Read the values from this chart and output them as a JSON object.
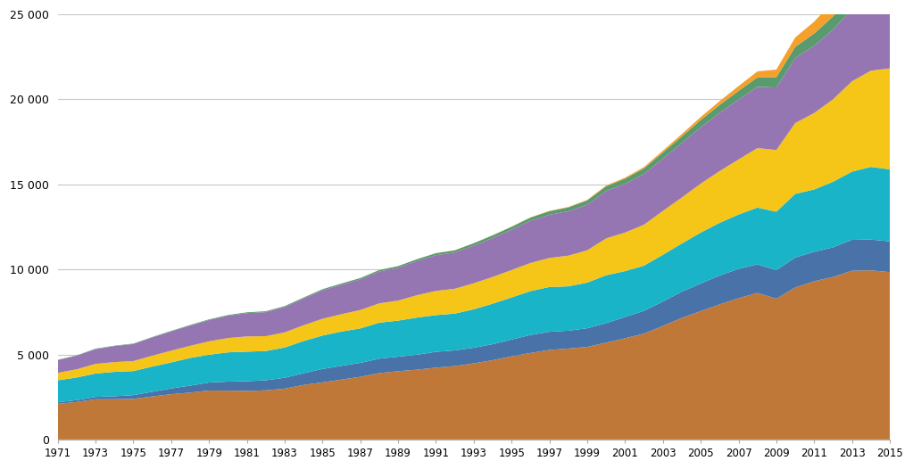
{
  "years": [
    1971,
    1972,
    1973,
    1974,
    1975,
    1976,
    1977,
    1978,
    1979,
    1980,
    1981,
    1982,
    1983,
    1984,
    1985,
    1986,
    1987,
    1988,
    1989,
    1990,
    1991,
    1992,
    1993,
    1994,
    1995,
    1996,
    1997,
    1998,
    1999,
    2000,
    2001,
    2002,
    2003,
    2004,
    2005,
    2006,
    2007,
    2008,
    2009,
    2010,
    2011,
    2012,
    2013,
    2014,
    2015
  ],
  "layers": {
    "coal": [
      2097,
      2204,
      2362,
      2366,
      2385,
      2530,
      2660,
      2756,
      2876,
      2870,
      2855,
      2888,
      2989,
      3206,
      3355,
      3519,
      3684,
      3901,
      4016,
      4102,
      4225,
      4317,
      4474,
      4662,
      4886,
      5086,
      5263,
      5345,
      5442,
      5694,
      5952,
      6224,
      6679,
      7148,
      7549,
      7942,
      8308,
      8617,
      8277,
      8938,
      9304,
      9559,
      9921,
      9946,
      9840
    ],
    "nuclear": [
      86,
      110,
      140,
      175,
      220,
      273,
      340,
      409,
      472,
      530,
      570,
      590,
      640,
      690,
      790,
      810,
      820,
      850,
      850,
      880,
      930,
      920,
      920,
      940,
      990,
      1060,
      1070,
      1050,
      1100,
      1150,
      1250,
      1340,
      1430,
      1540,
      1620,
      1700,
      1720,
      1680,
      1680,
      1760,
      1730,
      1740,
      1820,
      1810,
      1810
    ],
    "hydro": [
      1295,
      1329,
      1376,
      1434,
      1416,
      1482,
      1530,
      1627,
      1633,
      1722,
      1738,
      1723,
      1778,
      1893,
      1966,
      2017,
      2027,
      2117,
      2122,
      2187,
      2157,
      2165,
      2262,
      2384,
      2476,
      2580,
      2634,
      2609,
      2683,
      2813,
      2697,
      2657,
      2752,
      2836,
      2998,
      3097,
      3200,
      3339,
      3436,
      3746,
      3667,
      3859,
      4009,
      4274,
      4237
    ],
    "gas": [
      438,
      483,
      567,
      574,
      590,
      642,
      693,
      714,
      791,
      843,
      895,
      876,
      889,
      927,
      987,
      1020,
      1082,
      1135,
      1179,
      1316,
      1424,
      1462,
      1532,
      1572,
      1613,
      1653,
      1708,
      1804,
      1901,
      2168,
      2268,
      2410,
      2577,
      2704,
      2879,
      3044,
      3238,
      3501,
      3629,
      4167,
      4498,
      4847,
      5314,
      5657,
      5940
    ],
    "nuclear_purple": [
      750,
      800,
      870,
      940,
      1000,
      1070,
      1130,
      1190,
      1250,
      1310,
      1370,
      1410,
      1490,
      1570,
      1670,
      1730,
      1800,
      1870,
      1930,
      2010,
      2100,
      2130,
      2210,
      2290,
      2370,
      2480,
      2540,
      2610,
      2680,
      2790,
      2870,
      2980,
      3080,
      3200,
      3310,
      3420,
      3520,
      3600,
      3680,
      3820,
      3960,
      4100,
      4250,
      4350,
      4430
    ],
    "other_renew": [
      20,
      22,
      24,
      26,
      28,
      30,
      33,
      36,
      40,
      44,
      48,
      52,
      56,
      61,
      67,
      73,
      80,
      88,
      97,
      107,
      118,
      130,
      143,
      157,
      173,
      190,
      209,
      229,
      251,
      275,
      301,
      329,
      360,
      394,
      430,
      469,
      511,
      556,
      605,
      658,
      716,
      780,
      850,
      925,
      1005
    ],
    "wind_solar": [
      0,
      0,
      0,
      0,
      0,
      0,
      0,
      0,
      0,
      0,
      0,
      0,
      0,
      0,
      0,
      1,
      1,
      2,
      2,
      3,
      4,
      5,
      7,
      9,
      12,
      16,
      21,
      28,
      36,
      47,
      62,
      81,
      106,
      137,
      177,
      225,
      284,
      354,
      443,
      554,
      695,
      894,
      1148,
      1478,
      1870
    ]
  },
  "colors": {
    "coal": "#c07838",
    "nuclear": "#4872a8",
    "hydro": "#19b4c8",
    "gas": "#f5c518",
    "nuclear_purple": "#9575b2",
    "other_renew": "#5a9a6f",
    "wind_solar": "#f5a02a"
  },
  "ylim": [
    0,
    25000
  ],
  "yticks": [
    0,
    5000,
    10000,
    15000,
    20000,
    25000
  ],
  "background_color": "#ffffff",
  "grid_color": "#c8c8c8"
}
